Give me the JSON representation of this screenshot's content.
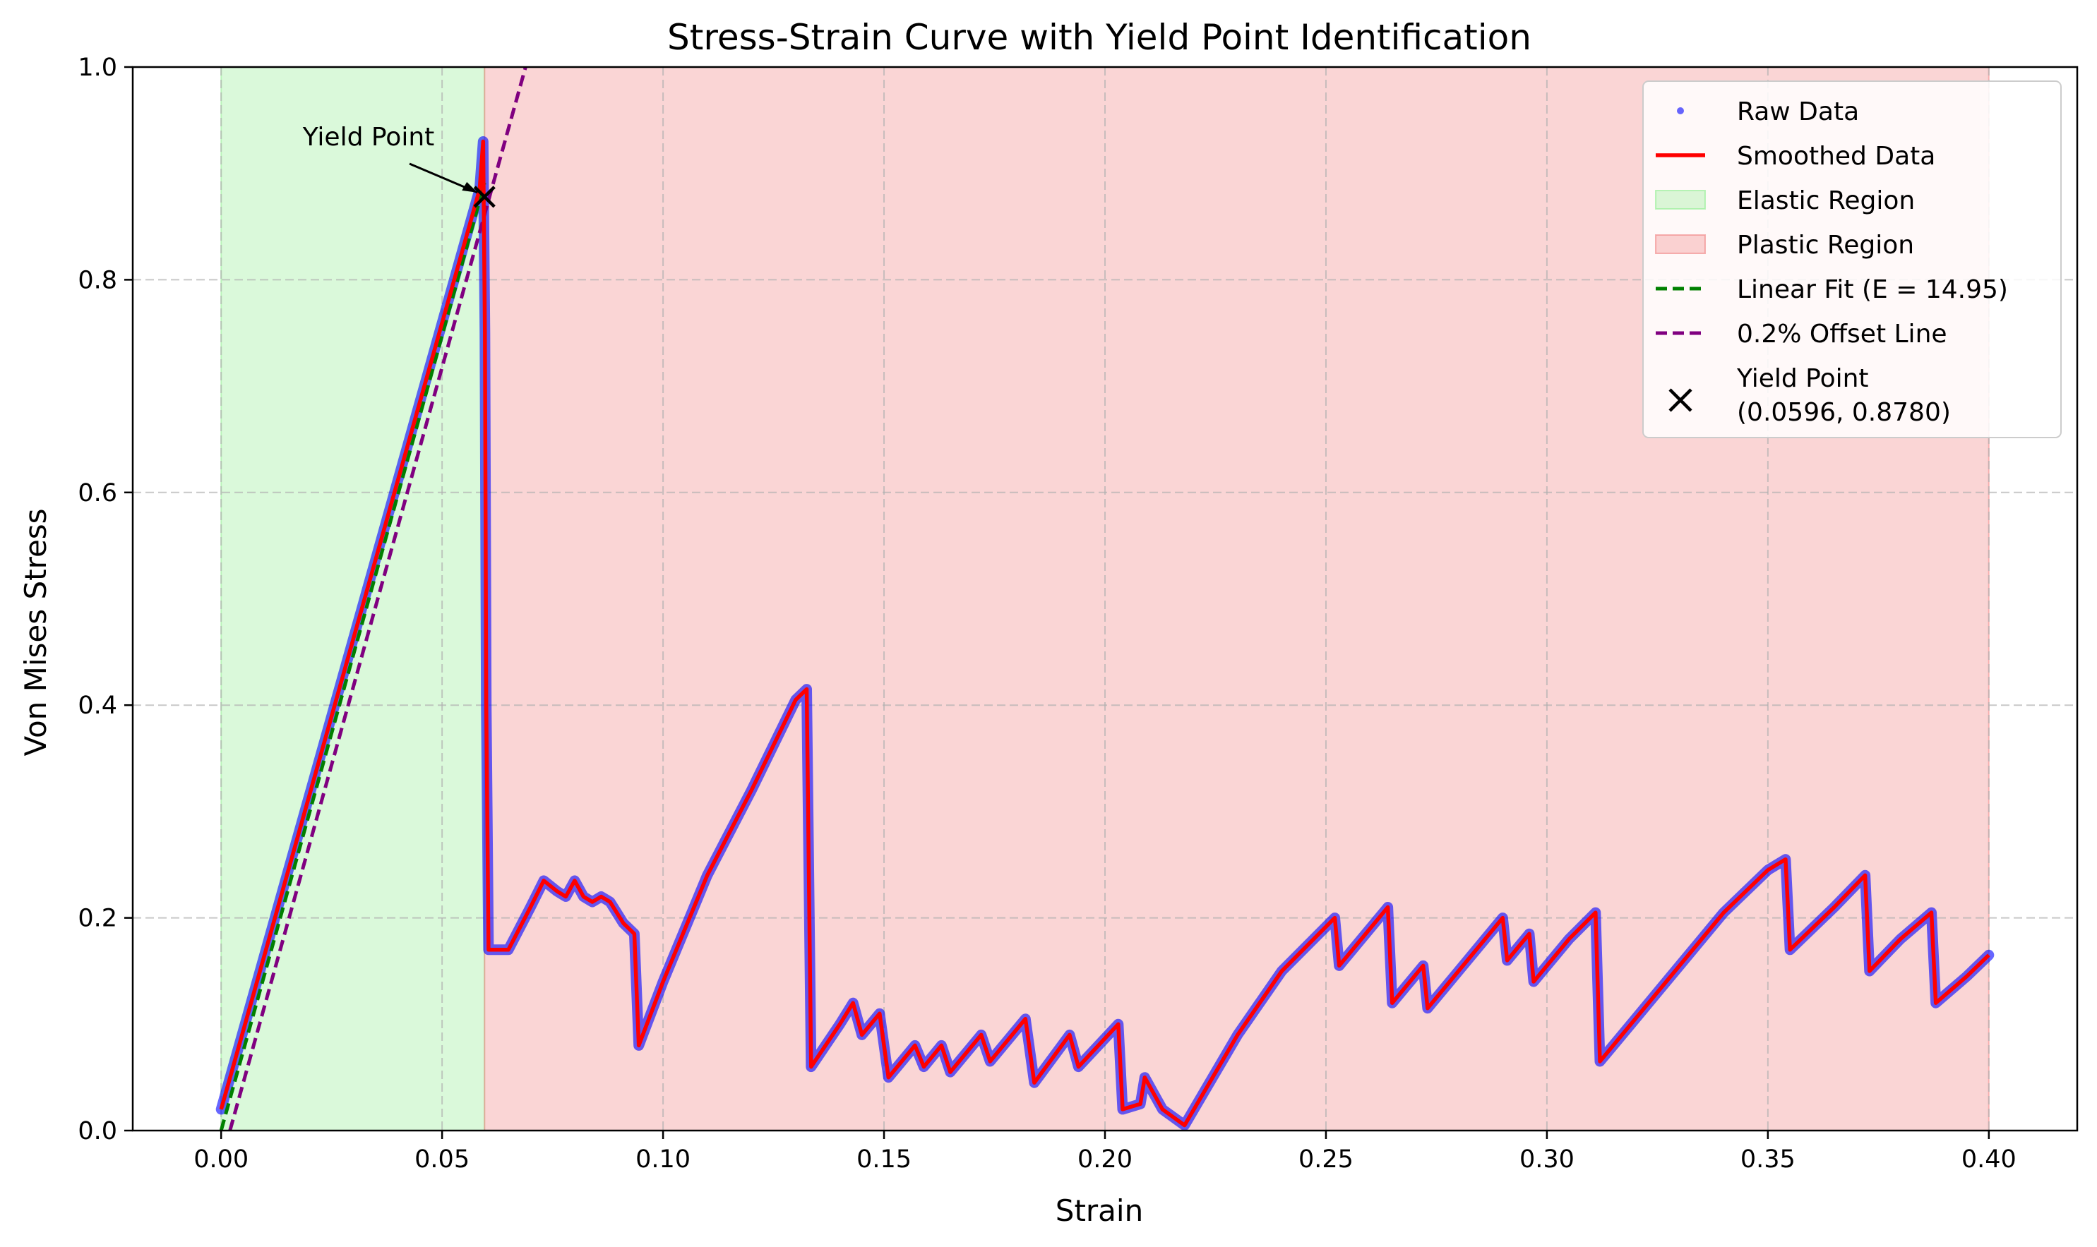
{
  "chart_data": {
    "type": "line",
    "title": "Stress-Strain Curve with Yield Point Identification",
    "xlabel": "Strain",
    "ylabel": "Von Mises Stress",
    "xlim": [
      -0.02,
      0.42
    ],
    "ylim": [
      0,
      1.0
    ],
    "x_ticks": [
      0.0,
      0.05,
      0.1,
      0.15,
      0.2,
      0.25,
      0.3,
      0.35,
      0.4
    ],
    "x_tick_labels": [
      "0.00",
      "0.05",
      "0.10",
      "0.15",
      "0.20",
      "0.25",
      "0.30",
      "0.35",
      "0.40"
    ],
    "y_ticks": [
      0.0,
      0.2,
      0.4,
      0.6,
      0.8,
      1.0
    ],
    "y_tick_labels": [
      "0.0",
      "0.2",
      "0.4",
      "0.6",
      "0.8",
      "1.0"
    ],
    "grid": true,
    "legend_position": "top-right",
    "regions": [
      {
        "name": "Elastic Region",
        "x_start": 0.0,
        "x_end": 0.0596,
        "color": "#90ee90"
      },
      {
        "name": "Plastic Region",
        "x_start": 0.0596,
        "x_end": 0.4,
        "color": "#f08080"
      }
    ],
    "series": [
      {
        "name": "Smoothed Data",
        "color": "#ff0000",
        "points": [
          [
            0.0,
            0.02
          ],
          [
            0.0585,
            0.885
          ],
          [
            0.0593,
            0.93
          ],
          [
            0.0597,
            0.75
          ],
          [
            0.06,
            0.4
          ],
          [
            0.0605,
            0.17
          ],
          [
            0.065,
            0.17
          ],
          [
            0.07,
            0.21
          ],
          [
            0.073,
            0.235
          ],
          [
            0.076,
            0.225
          ],
          [
            0.078,
            0.22
          ],
          [
            0.08,
            0.235
          ],
          [
            0.082,
            0.22
          ],
          [
            0.084,
            0.215
          ],
          [
            0.086,
            0.22
          ],
          [
            0.088,
            0.215
          ],
          [
            0.091,
            0.195
          ],
          [
            0.0935,
            0.185
          ],
          [
            0.0945,
            0.08
          ],
          [
            0.1,
            0.14
          ],
          [
            0.11,
            0.24
          ],
          [
            0.12,
            0.32
          ],
          [
            0.13,
            0.405
          ],
          [
            0.1325,
            0.415
          ],
          [
            0.1335,
            0.06
          ],
          [
            0.14,
            0.1
          ],
          [
            0.143,
            0.12
          ],
          [
            0.145,
            0.09
          ],
          [
            0.149,
            0.11
          ],
          [
            0.151,
            0.05
          ],
          [
            0.157,
            0.08
          ],
          [
            0.159,
            0.06
          ],
          [
            0.163,
            0.08
          ],
          [
            0.165,
            0.055
          ],
          [
            0.172,
            0.09
          ],
          [
            0.174,
            0.065
          ],
          [
            0.182,
            0.105
          ],
          [
            0.184,
            0.045
          ],
          [
            0.192,
            0.09
          ],
          [
            0.194,
            0.06
          ],
          [
            0.203,
            0.1
          ],
          [
            0.204,
            0.02
          ],
          [
            0.208,
            0.025
          ],
          [
            0.209,
            0.05
          ],
          [
            0.213,
            0.02
          ],
          [
            0.218,
            0.005
          ],
          [
            0.23,
            0.09
          ],
          [
            0.24,
            0.15
          ],
          [
            0.252,
            0.2
          ],
          [
            0.253,
            0.155
          ],
          [
            0.258,
            0.18
          ],
          [
            0.264,
            0.21
          ],
          [
            0.265,
            0.12
          ],
          [
            0.272,
            0.155
          ],
          [
            0.273,
            0.115
          ],
          [
            0.28,
            0.15
          ],
          [
            0.29,
            0.2
          ],
          [
            0.291,
            0.16
          ],
          [
            0.296,
            0.185
          ],
          [
            0.297,
            0.14
          ],
          [
            0.305,
            0.18
          ],
          [
            0.311,
            0.205
          ],
          [
            0.312,
            0.065
          ],
          [
            0.32,
            0.105
          ],
          [
            0.33,
            0.155
          ],
          [
            0.34,
            0.205
          ],
          [
            0.35,
            0.245
          ],
          [
            0.354,
            0.255
          ],
          [
            0.355,
            0.17
          ],
          [
            0.365,
            0.21
          ],
          [
            0.372,
            0.24
          ],
          [
            0.373,
            0.15
          ],
          [
            0.38,
            0.18
          ],
          [
            0.387,
            0.205
          ],
          [
            0.388,
            0.12
          ],
          [
            0.395,
            0.145
          ],
          [
            0.4,
            0.165
          ]
        ]
      },
      {
        "name": "Linear Fit (E = 14.95)",
        "color": "#008000",
        "style": "dashed",
        "slope": 14.95,
        "x_start": 0.0,
        "x_end": 0.0596
      },
      {
        "name": "0.2% Offset Line",
        "color": "#800080",
        "style": "dashed",
        "slope": 14.95,
        "offset": 0.002
      }
    ],
    "raw_data": {
      "name": "Raw Data",
      "color": "#0000ff"
    },
    "yield_point": {
      "x": 0.0596,
      "y": 0.878,
      "label": "Yield Point"
    },
    "legend": [
      {
        "label": "Raw Data",
        "kind": "dot",
        "color": "#0000ff"
      },
      {
        "label": "Smoothed Data",
        "kind": "line",
        "color": "#ff0000"
      },
      {
        "label": "Elastic Region",
        "kind": "patch",
        "color": "#90ee90"
      },
      {
        "label": "Plastic Region",
        "kind": "patch",
        "color": "#f08080"
      },
      {
        "label": "Linear Fit (E = 14.95)",
        "kind": "dash",
        "color": "#008000"
      },
      {
        "label": "0.2% Offset Line",
        "kind": "dash",
        "color": "#800080"
      },
      {
        "label": "Yield Point",
        "label2": "(0.0596, 0.8780)",
        "kind": "x",
        "color": "#000000"
      }
    ]
  }
}
